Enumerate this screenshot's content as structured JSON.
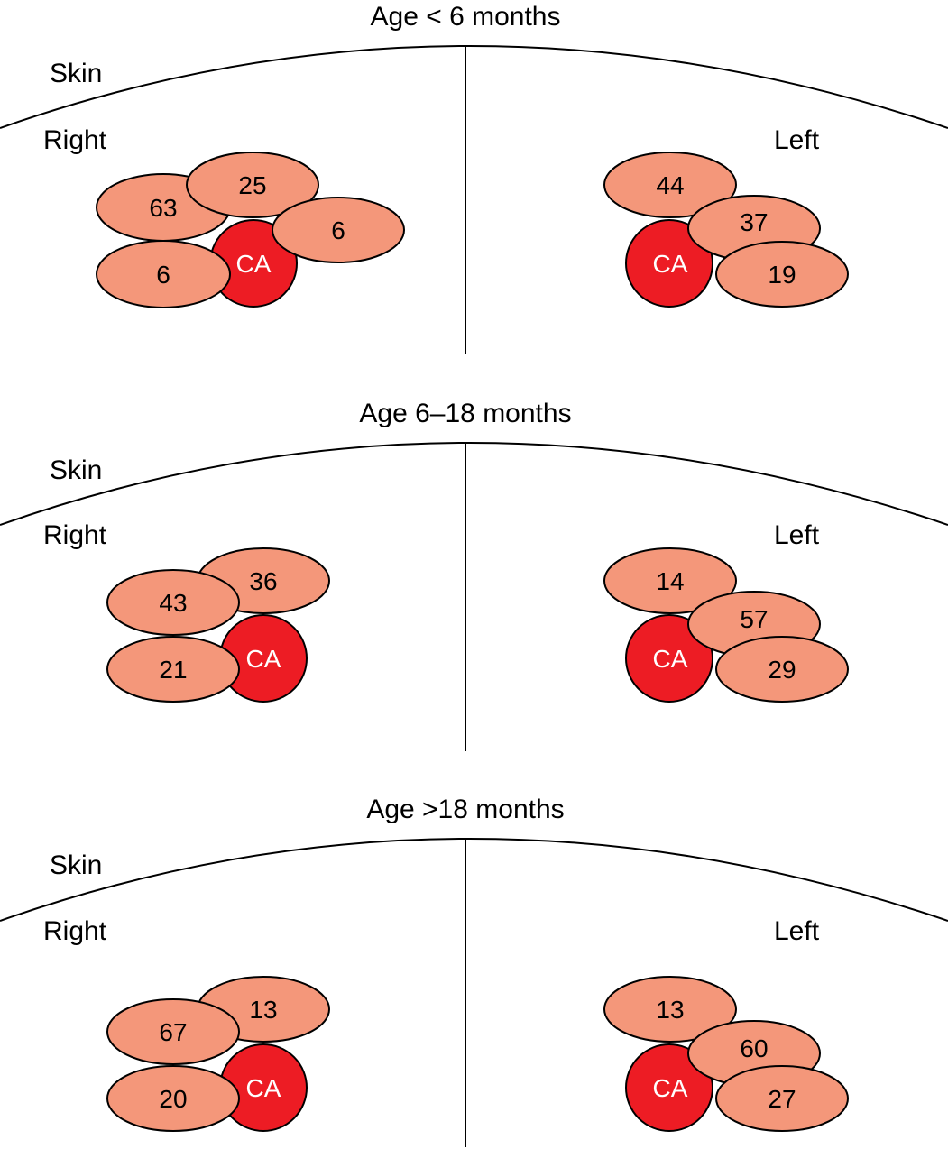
{
  "colors": {
    "node_fill": "#f4977a",
    "ca_fill": "#ed1c24",
    "stroke": "#000000",
    "ca_text": "#ffffff"
  },
  "labels": {
    "skin": "Skin",
    "right": "Right",
    "left": "Left",
    "ca": "CA"
  },
  "panels": [
    {
      "title": "Age < 6 months",
      "right_nodes": [
        "63",
        "25",
        "6",
        "6"
      ],
      "left_nodes": [
        "44",
        "37",
        "19"
      ]
    },
    {
      "title": "Age 6–18 months",
      "right_nodes": [
        "43",
        "36",
        "21"
      ],
      "left_nodes": [
        "14",
        "57",
        "29"
      ]
    },
    {
      "title": "Age >18 months",
      "right_nodes": [
        "67",
        "13",
        "20"
      ],
      "left_nodes": [
        "13",
        "60",
        "27"
      ]
    }
  ]
}
